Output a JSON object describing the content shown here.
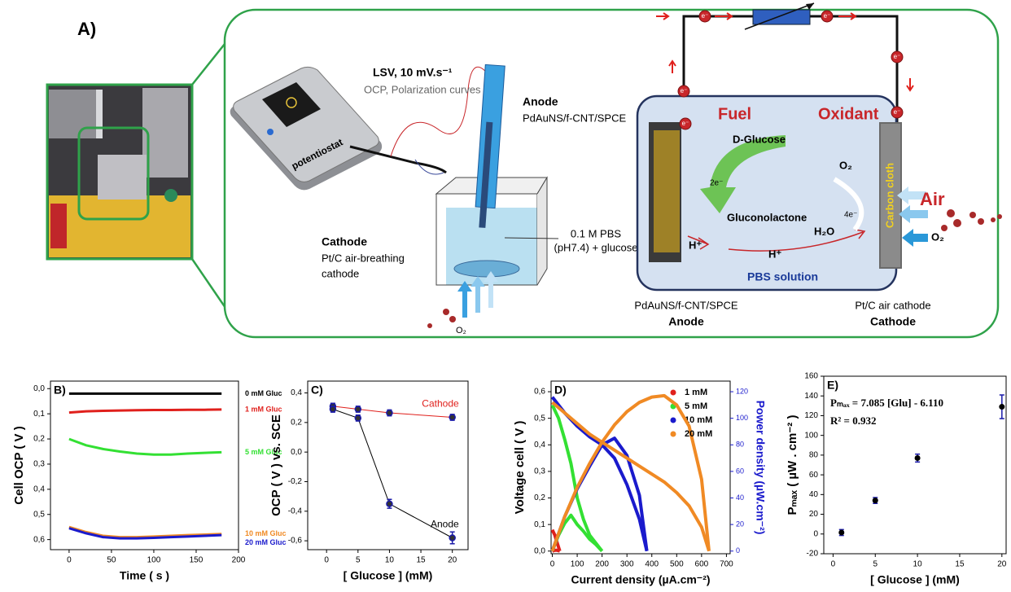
{
  "diagram": {
    "panel_label": "A)",
    "lsv": "LSV, 10 mV.s⁻¹",
    "lsv_sub": "OCP, Polarization curves",
    "potentiostat": "potentiostat",
    "anode_title": "Anode",
    "anode_material": "PdAuNS/f-CNT/SPCE",
    "electrolyte_1": "0.1 M PBS",
    "electrolyte_2": "(pH7.4) + glucose",
    "cathode_title": "Cathode",
    "cathode_desc_1": "Pt/C air-breathing",
    "cathode_desc_2": "cathode",
    "oxygen": "O₂",
    "fuel": "Fuel",
    "oxidant": "Oxidant",
    "glucose": "D-Glucose",
    "gluconolactone": "Gluconolactone",
    "proton": "H⁺",
    "water": "H₂O",
    "two_electrons": "2e⁻",
    "four_electrons": "4e⁻",
    "carbon_cloth": "Carbon cloth",
    "air": "Air",
    "pbs_solution": "PBS solution",
    "cell_anode_material": "PdAuNS/f-CNT/SPCE",
    "cell_anode": "Anode",
    "cell_cathode_material": "Pt/C air cathode",
    "cell_cathode": "Cathode",
    "electron": "e⁻"
  },
  "chart_data": [
    {
      "type": "line",
      "label": "B)",
      "xlabel": "Time ( s )",
      "ylabel": "Cell OCP ( V )",
      "x": [
        0,
        20,
        40,
        60,
        80,
        100,
        120,
        140,
        160,
        180
      ],
      "xlim": [
        -22,
        200
      ],
      "xticks": [
        0,
        50,
        100,
        150,
        200
      ],
      "ylim": [
        0.64,
        -0.03
      ],
      "yticks": [
        {
          "value": 0,
          "label": "0,0"
        },
        {
          "value": 0.1,
          "label": "0,1"
        },
        {
          "value": 0.2,
          "label": "0,2"
        },
        {
          "value": 0.3,
          "label": "0,3"
        },
        {
          "value": 0.4,
          "label": "0,4"
        },
        {
          "value": 0.5,
          "label": "0,5"
        },
        {
          "value": 0.6,
          "label": "0,6"
        }
      ],
      "series": [
        {
          "name": "0 mM Gluc",
          "color": "#000000",
          "values": [
            0.02,
            0.02,
            0.02,
            0.02,
            0.02,
            0.02,
            0.02,
            0.02,
            0.02,
            0.02
          ]
        },
        {
          "name": "1 mM Gluc",
          "color": "#e0201c",
          "values": [
            0.095,
            0.09,
            0.088,
            0.087,
            0.086,
            0.085,
            0.085,
            0.084,
            0.084,
            0.083
          ]
        },
        {
          "name": "5 mM Gluc",
          "color": "#33e033",
          "values": [
            0.2,
            0.225,
            0.24,
            0.25,
            0.258,
            0.262,
            0.262,
            0.258,
            0.255,
            0.253
          ]
        },
        {
          "name": "10 mM Gluc",
          "color": "#f08a24",
          "values": [
            0.55,
            0.57,
            0.585,
            0.59,
            0.59,
            0.588,
            0.585,
            0.582,
            0.58,
            0.578
          ]
        },
        {
          "name": "20 mM Gluc",
          "color": "#1a1acc",
          "values": [
            0.555,
            0.575,
            0.59,
            0.595,
            0.595,
            0.593,
            0.59,
            0.588,
            0.585,
            0.582
          ]
        }
      ]
    },
    {
      "type": "line",
      "label": "C)",
      "xlabel": "[ Glucose ] (mM)",
      "ylabel": "OCP ( V ) vs. SCE",
      "x": [
        1,
        5,
        10,
        20
      ],
      "xlim": [
        -3,
        22.5
      ],
      "xticks": [
        0,
        5,
        10,
        15,
        20
      ],
      "ylim": [
        -0.66,
        0.48
      ],
      "yticks": [
        {
          "value": 0.4,
          "label": "0,4"
        },
        {
          "value": 0.2,
          "label": "0,2"
        },
        {
          "value": 0,
          "label": "0,0"
        },
        {
          "value": -0.2,
          "label": "-0,2"
        },
        {
          "value": -0.4,
          "label": "-0,4"
        },
        {
          "value": -0.6,
          "label": "-0,6"
        }
      ],
      "marker_color": "#1a1aa8",
      "series": [
        {
          "name": "Cathode",
          "color": "#e0201c",
          "values": [
            0.31,
            0.29,
            0.265,
            0.235
          ],
          "errors": [
            0.02,
            0.02,
            0.02,
            0.02
          ]
        },
        {
          "name": "Anode",
          "color": "#000000",
          "values": [
            0.29,
            0.23,
            -0.35,
            -0.58
          ],
          "errors": [
            0.02,
            0.02,
            0.03,
            0.04
          ]
        }
      ]
    },
    {
      "type": "dual",
      "label": "D)",
      "xlabel": "Current density (µA.cm⁻²)",
      "ylabel": "Voltage cell ( V )",
      "y2label": "Power density (µW.cm⁻²)",
      "y2label_color": "#1a1acc",
      "xlim": [
        -5,
        715
      ],
      "xticks": [
        0,
        100,
        200,
        300,
        400,
        500,
        600,
        700
      ],
      "ylim": [
        -0.01,
        0.64
      ],
      "yticks": [
        {
          "value": 0,
          "label": "0,0"
        },
        {
          "value": 0.1,
          "label": "0,1"
        },
        {
          "value": 0.2,
          "label": "0,2"
        },
        {
          "value": 0.3,
          "label": "0,3"
        },
        {
          "value": 0.4,
          "label": "0,4"
        },
        {
          "value": 0.5,
          "label": "0,5"
        },
        {
          "value": 0.6,
          "label": "0,6"
        }
      ],
      "y2lim": [
        -2,
        128
      ],
      "y2ticks": [
        0,
        20,
        40,
        60,
        80,
        100,
        120
      ],
      "legend": "top-right",
      "series": [
        {
          "name": "1 mM",
          "color": "#e0201c",
          "x": [
            0,
            10,
            20,
            30
          ],
          "values": [
            0.08,
            0.06,
            0.03,
            0
          ],
          "power": [
            0,
            0.6,
            0.6,
            0
          ]
        },
        {
          "name": "5 mM",
          "color": "#33e033",
          "x": [
            0,
            25,
            50,
            75,
            100,
            125,
            150,
            175,
            200
          ],
          "values": [
            0.55,
            0.5,
            0.42,
            0.33,
            0.2,
            0.12,
            0.06,
            0.03,
            0
          ],
          "power": [
            0,
            12,
            21,
            27,
            20,
            15,
            9,
            5,
            0
          ]
        },
        {
          "name": "10 mM",
          "color": "#1a1acc",
          "x": [
            0,
            50,
            100,
            150,
            200,
            250,
            300,
            350,
            380
          ],
          "values": [
            0.58,
            0.52,
            0.47,
            0.43,
            0.4,
            0.35,
            0.25,
            0.12,
            0
          ],
          "power": [
            0,
            26,
            47,
            64,
            80,
            85,
            72,
            42,
            0
          ]
        },
        {
          "name": "20 mM",
          "color": "#f08a24",
          "x": [
            0,
            50,
            100,
            150,
            200,
            250,
            300,
            350,
            400,
            450,
            500,
            550,
            600,
            630
          ],
          "values": [
            0.56,
            0.52,
            0.48,
            0.44,
            0.41,
            0.38,
            0.35,
            0.32,
            0.29,
            0.26,
            0.22,
            0.17,
            0.09,
            0
          ],
          "power": [
            0,
            26,
            48,
            66,
            82,
            95,
            105,
            112,
            116,
            117,
            110,
            94,
            54,
            0
          ]
        }
      ]
    },
    {
      "type": "scatter",
      "label": "E)",
      "xlabel": "[ Glucose ] (mM)",
      "ylabel": "Pₘₐₓ ( µW . cm⁻² )",
      "equation": "Pₘₐₓ = 7.085 [Glu] - 6.110",
      "r_squared": "R² = 0.932",
      "x": [
        1,
        5,
        10,
        20
      ],
      "values": [
        1.5,
        34,
        77,
        129
      ],
      "errors": [
        3,
        3,
        4,
        12
      ],
      "color": "#000000",
      "error_color": "#1a1aa8",
      "xlim": [
        -1.1,
        20.5
      ],
      "xticks": [
        0,
        5,
        10,
        15,
        20
      ],
      "ylim": [
        -20,
        160
      ],
      "yticks": [
        -20,
        0,
        20,
        40,
        60,
        80,
        100,
        120,
        140,
        160
      ]
    }
  ]
}
